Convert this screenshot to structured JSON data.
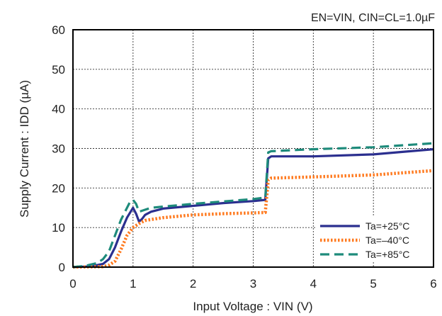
{
  "chart_data": {
    "type": "line",
    "condition_label": "EN=VIN, CIN=CL=1.0µF",
    "xlabel": "Input Voltage : VIN (V)",
    "ylabel": "Supply Current : IDD (µA)",
    "xlim": [
      0,
      6
    ],
    "ylim": [
      0,
      60
    ],
    "xticks": [
      "0",
      "1",
      "2",
      "3",
      "4",
      "5",
      "6"
    ],
    "yticks": [
      "0",
      "10",
      "20",
      "30",
      "40",
      "50",
      "60"
    ],
    "grid": true,
    "legend_position": "bottom-right",
    "series": [
      {
        "name": "Ta=+25°C",
        "color": "#2b2f8f",
        "style": "solid",
        "x": [
          0,
          0.3,
          0.5,
          0.6,
          0.7,
          0.8,
          0.9,
          1.0,
          1.05,
          1.1,
          1.15,
          1.2,
          1.3,
          1.5,
          2.0,
          2.5,
          3.0,
          3.2,
          3.25,
          3.3,
          4.0,
          5.0,
          6.0
        ],
        "y": [
          0,
          0.2,
          0.8,
          2,
          5,
          9,
          12.5,
          15,
          13.5,
          11.5,
          12.2,
          13.2,
          14,
          14.8,
          15.5,
          16.2,
          16.7,
          17,
          27.5,
          28,
          28,
          28.5,
          29.8
        ]
      },
      {
        "name": "Ta=–40°C",
        "color": "#ff7a1f",
        "style": "dotted",
        "x": [
          0,
          0.5,
          0.6,
          0.7,
          0.8,
          0.9,
          1.0,
          1.1,
          1.2,
          1.5,
          2.0,
          2.5,
          3.0,
          3.2,
          3.25,
          3.3,
          4.0,
          5.0,
          6.0
        ],
        "y": [
          0,
          0.1,
          0.5,
          1.5,
          4.5,
          8,
          10,
          11,
          11.8,
          12.5,
          13.2,
          13.5,
          13.7,
          13.8,
          22,
          22.5,
          22.8,
          23.3,
          24.4
        ]
      },
      {
        "name": "Ta=+85°C",
        "color": "#1e8b7b",
        "style": "dashed",
        "x": [
          0,
          0.2,
          0.4,
          0.5,
          0.6,
          0.7,
          0.8,
          0.9,
          0.95,
          1.0,
          1.05,
          1.1,
          1.2,
          1.3,
          1.5,
          2.0,
          2.5,
          3.0,
          3.2,
          3.25,
          3.3,
          4.0,
          5.0,
          6.0
        ],
        "y": [
          0,
          0.3,
          1,
          2,
          4,
          8,
          12,
          15,
          16.5,
          17,
          16,
          14,
          14.5,
          15,
          15.3,
          16,
          16.6,
          17.2,
          17.6,
          29,
          29.3,
          29.8,
          30.3,
          31.3
        ]
      }
    ]
  }
}
